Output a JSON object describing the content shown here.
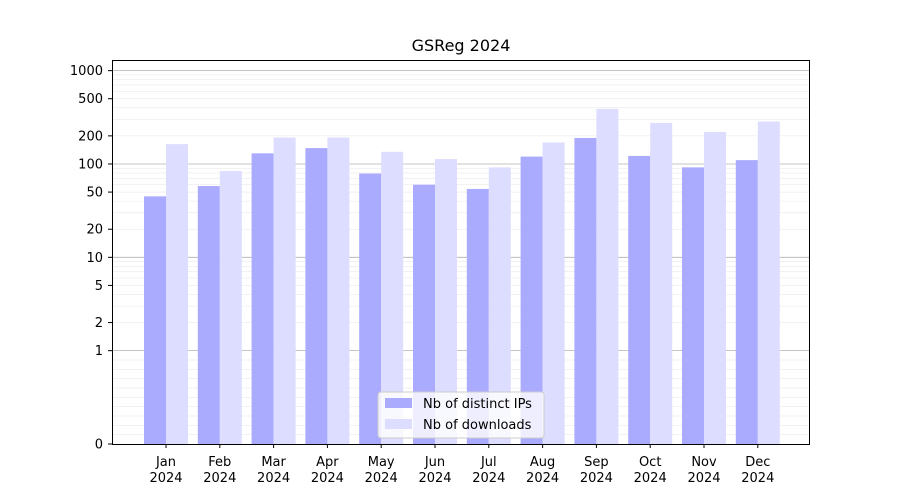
{
  "chart_data": {
    "type": "bar",
    "title": "GSReg 2024",
    "xlabel": "",
    "ylabel": "",
    "yscale": "symlog",
    "ylim": [
      0,
      1300
    ],
    "grid": "horizontal",
    "legend_position": "bottom-center",
    "categories": [
      {
        "month": "Jan",
        "year": "2024"
      },
      {
        "month": "Feb",
        "year": "2024"
      },
      {
        "month": "Mar",
        "year": "2024"
      },
      {
        "month": "Apr",
        "year": "2024"
      },
      {
        "month": "May",
        "year": "2024"
      },
      {
        "month": "Jun",
        "year": "2024"
      },
      {
        "month": "Jul",
        "year": "2024"
      },
      {
        "month": "Aug",
        "year": "2024"
      },
      {
        "month": "Sep",
        "year": "2024"
      },
      {
        "month": "Oct",
        "year": "2024"
      },
      {
        "month": "Nov",
        "year": "2024"
      },
      {
        "month": "Dec",
        "year": "2024"
      }
    ],
    "y_ticks": [
      {
        "value": 0,
        "label": "0"
      },
      {
        "value": 1,
        "label": "1"
      },
      {
        "value": 2,
        "label": "2"
      },
      {
        "value": 5,
        "label": "5"
      },
      {
        "value": 10,
        "label": "10"
      },
      {
        "value": 20,
        "label": "20"
      },
      {
        "value": 50,
        "label": "50"
      },
      {
        "value": 100,
        "label": "100"
      },
      {
        "value": 200,
        "label": "200"
      },
      {
        "value": 500,
        "label": "500"
      },
      {
        "value": 1000,
        "label": "1000"
      }
    ],
    "series": [
      {
        "name": "Nb of distinct IPs",
        "color": "#aaaaff",
        "values": [
          45,
          58,
          130,
          148,
          79,
          60,
          54,
          120,
          190,
          122,
          92,
          110
        ]
      },
      {
        "name": "Nb of downloads",
        "color": "#ddddff",
        "values": [
          163,
          84,
          192,
          192,
          135,
          113,
          92,
          170,
          390,
          275,
          220,
          285
        ]
      }
    ]
  }
}
